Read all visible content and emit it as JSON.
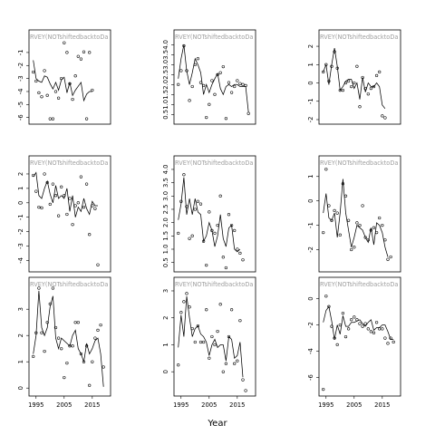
{
  "chart_data": {
    "type": "scatter",
    "xlabel": "Year",
    "panel_title": "RVEY(NOTshiftedbacktoDa",
    "xticks": [
      1995,
      2005,
      2015
    ],
    "xlim": [
      1992.5,
      2021.5
    ],
    "panels": [
      {
        "row": 0,
        "col": 0,
        "ylim": [
          -6.3,
          -0.1
        ],
        "yticks": [
          -6,
          -5,
          -4,
          -3,
          -2,
          -1
        ],
        "x": [
          1994,
          1995,
          1996,
          1997,
          1998,
          1999,
          2000,
          2001,
          2002,
          2003,
          2004,
          2005,
          2006,
          2007,
          2008,
          2009,
          2010,
          2011,
          2012,
          2013,
          2014,
          2015,
          2016,
          2017,
          2018,
          2019
        ],
        "y": [
          -2.5,
          -3.2,
          -4.1,
          -4.4,
          -2.4,
          -4.3,
          -6.1,
          -6.1,
          -4.0,
          -4.5,
          -3.0,
          -0.25,
          -1.0,
          -3.4,
          -4.6,
          -2.8,
          -1.3,
          -1.5,
          -0.95,
          -6.1,
          -1.0,
          -3.9,
          null,
          null,
          null,
          null
        ],
        "smooth": [
          -1.6,
          -3.0,
          -3.2,
          -3.3,
          -2.8,
          -2.9,
          -3.4,
          -3.8,
          -3.3,
          -3.9,
          -3.1,
          -2.9,
          -4.1,
          -3.3,
          -4.3,
          -3.9,
          -3.6,
          -3.3,
          -4.7,
          -4.2,
          -4.0,
          -4.0,
          null,
          null,
          null,
          null
        ]
      },
      {
        "row": 0,
        "col": 1,
        "ylim": [
          0.15,
          4.2
        ],
        "yticks": [
          0.5,
          1.0,
          1.5,
          2.0,
          2.5,
          3.0,
          3.5,
          4.0
        ],
        "x": [
          1994,
          1995,
          1996,
          1997,
          1998,
          1999,
          2000,
          2001,
          2002,
          2003,
          2004,
          2005,
          2006,
          2007,
          2008,
          2009,
          2010,
          2011,
          2012,
          2013,
          2014,
          2015,
          2016,
          2017,
          2018,
          2019
        ],
        "y": [
          2.0,
          2.7,
          3.95,
          2.7,
          1.2,
          1.9,
          3.0,
          3.3,
          2.1,
          1.95,
          0.35,
          1.0,
          2.2,
          1.5,
          2.5,
          2.6,
          2.9,
          0.3,
          2.1,
          1.6,
          1.9,
          2.2,
          2.05,
          2.0,
          1.95,
          0.55
        ],
        "smooth": [
          2.3,
          3.3,
          4.0,
          2.7,
          2.0,
          2.6,
          3.3,
          3.0,
          2.6,
          1.5,
          2.0,
          1.6,
          2.0,
          2.3,
          2.55,
          1.8,
          1.5,
          1.9,
          2.0,
          1.9,
          2.0,
          2.0,
          1.9,
          1.9,
          1.9,
          0.6
        ]
      },
      {
        "row": 0,
        "col": 2,
        "ylim": [
          -2.1,
          2.3
        ],
        "yticks": [
          -2,
          -1,
          0,
          1,
          2
        ],
        "x": [
          1994,
          1995,
          1996,
          1997,
          1998,
          1999,
          2000,
          2001,
          2002,
          2003,
          2004,
          2005,
          2006,
          2007,
          2008,
          2009,
          2010,
          2011,
          2012,
          2013,
          2014,
          2015,
          2016,
          2017,
          2018,
          2019
        ],
        "y": [
          0.6,
          1.0,
          0.1,
          0.9,
          1.7,
          0.8,
          -0.4,
          -0.4,
          0.0,
          0.1,
          -0.2,
          0.0,
          0.9,
          -1.3,
          0.3,
          -0.3,
          -0.6,
          -0.3,
          -0.2,
          0.4,
          0.6,
          -1.8,
          -1.9,
          null,
          null,
          null
        ],
        "smooth": [
          0.6,
          1.0,
          -0.1,
          1.0,
          1.9,
          0.9,
          -0.4,
          -0.2,
          0.1,
          0.2,
          0.2,
          -0.3,
          0.0,
          -0.9,
          0.3,
          -0.5,
          0.0,
          -0.2,
          -0.2,
          0.0,
          -0.2,
          -1.2,
          -1.4,
          null,
          null,
          null
        ]
      },
      {
        "row": 1,
        "col": 0,
        "ylim": [
          -4.6,
          2.5
        ],
        "yticks": [
          -4,
          -3,
          -2,
          -1,
          0,
          1,
          2
        ],
        "x": [
          1994,
          1995,
          1996,
          1997,
          1998,
          1999,
          2000,
          2001,
          2002,
          2003,
          2004,
          2005,
          2006,
          2007,
          2008,
          2009,
          2010,
          2011,
          2012,
          2013,
          2014,
          2015,
          2016,
          2017,
          2018,
          2019
        ],
        "y": [
          1.9,
          0.8,
          -0.3,
          -0.35,
          2.0,
          1.4,
          -0.1,
          1.3,
          0.5,
          -0.9,
          1.1,
          0.5,
          -0.8,
          0.3,
          -1.5,
          -0.2,
          0.0,
          1.8,
          -0.3,
          1.3,
          -2.2,
          -0.2,
          -0.4,
          -4.3,
          null,
          null
        ],
        "smooth": [
          1.8,
          2.1,
          0.5,
          0.3,
          1.0,
          1.5,
          0.6,
          0.0,
          1.2,
          0.3,
          0.5,
          0.3,
          1.0,
          -0.6,
          0.5,
          -1.0,
          -0.3,
          -0.6,
          0.3,
          -0.4,
          -0.8,
          0.1,
          -0.2,
          -0.2,
          null,
          null
        ]
      },
      {
        "row": 1,
        "col": 1,
        "ylim": [
          0.25,
          4.1
        ],
        "yticks": [
          0.5,
          1.0,
          1.5,
          2.0,
          2.5,
          3.0,
          3.5,
          4.0
        ],
        "x": [
          1994,
          1995,
          1996,
          1997,
          1998,
          1999,
          2000,
          2001,
          2002,
          2003,
          2004,
          2005,
          2006,
          2007,
          2008,
          2009,
          2010,
          2011,
          2012,
          2013,
          2014,
          2015,
          2016,
          2017,
          2018,
          2019
        ],
        "y": [
          1.6,
          2.8,
          3.8,
          2.6,
          1.4,
          1.5,
          2.5,
          2.8,
          2.7,
          1.3,
          0.4,
          2.4,
          1.7,
          1.6,
          1.9,
          3.0,
          0.7,
          0.3,
          2.3,
          1.9,
          1.7,
          1.0,
          0.85,
          0.6,
          null,
          null
        ],
        "smooth": [
          2.1,
          2.7,
          3.7,
          2.3,
          2.9,
          2.3,
          2.9,
          2.4,
          2.3,
          1.3,
          1.5,
          2.0,
          1.7,
          1.1,
          1.5,
          2.3,
          1.4,
          1.1,
          1.8,
          1.9,
          1.0,
          0.9,
          1.0,
          null,
          null,
          null
        ]
      },
      {
        "row": 1,
        "col": 2,
        "ylim": [
          -2.8,
          1.4
        ],
        "yticks": [
          -2,
          -1,
          0,
          1
        ],
        "x": [
          1994,
          1995,
          1996,
          1997,
          1998,
          1999,
          2000,
          2001,
          2002,
          2003,
          2004,
          2005,
          2006,
          2007,
          2008,
          2009,
          2010,
          2011,
          2012,
          2013,
          2014,
          2015,
          2016,
          2017,
          2018,
          2019
        ],
        "y": [
          -1.3,
          1.3,
          -0.2,
          -0.8,
          -0.4,
          -0.5,
          -1.4,
          0.7,
          0.2,
          -0.8,
          -2.0,
          -1.9,
          -0.9,
          -1.0,
          -0.2,
          -1.5,
          -1.6,
          -1.2,
          -1.1,
          -1.3,
          -0.7,
          -1.0,
          -1.6,
          -2.4,
          -2.3,
          null
        ],
        "smooth": [
          -0.5,
          0.3,
          -0.7,
          -0.8,
          -0.5,
          -1.5,
          -0.5,
          0.9,
          -0.5,
          -1.2,
          -1.9,
          -1.5,
          -1.0,
          -1.1,
          -1.2,
          -1.5,
          -1.7,
          -1.1,
          -1.8,
          -0.9,
          -1.0,
          -1.3,
          -1.9,
          -2.3,
          null,
          null
        ]
      },
      {
        "row": 2,
        "col": 0,
        "ylim": [
          -0.2,
          3.8
        ],
        "yticks": [
          0,
          1,
          2,
          3
        ],
        "x": [
          1994,
          1995,
          1996,
          1997,
          1998,
          1999,
          2000,
          2001,
          2002,
          2003,
          2004,
          2005,
          2006,
          2007,
          2008,
          2009,
          2010,
          2011,
          2012,
          2013,
          2014,
          2015,
          2016,
          2017,
          2018,
          2019
        ],
        "y": [
          1.2,
          2.1,
          3.8,
          2.1,
          1.4,
          2.5,
          3.2,
          3.8,
          2.3,
          1.9,
          1.5,
          0.4,
          0.95,
          1.6,
          1.6,
          2.5,
          2.5,
          1.3,
          1.0,
          1.6,
          0.1,
          1.0,
          1.9,
          2.2,
          2.4,
          0.8
        ],
        "smooth": [
          1.3,
          2.0,
          3.7,
          2.3,
          2.0,
          2.3,
          3.1,
          3.5,
          1.9,
          1.5,
          1.9,
          1.8,
          1.7,
          1.6,
          2.0,
          2.2,
          1.5,
          1.3,
          1.0,
          1.7,
          1.3,
          1.5,
          1.8,
          1.9,
          1.3,
          0.05
        ]
      },
      {
        "row": 2,
        "col": 1,
        "ylim": [
          -0.8,
          3.1
        ],
        "yticks": [
          0,
          1,
          2,
          3
        ],
        "x": [
          1994,
          1995,
          1996,
          1997,
          1998,
          1999,
          2000,
          2001,
          2002,
          2003,
          2004,
          2005,
          2006,
          2007,
          2008,
          2009,
          2010,
          2011,
          2012,
          2013,
          2014,
          2015,
          2016,
          2017,
          2018,
          2019
        ],
        "y": [
          0.25,
          2.2,
          2.6,
          2.9,
          2.4,
          1.6,
          1.1,
          1.7,
          1.1,
          1.1,
          2.3,
          0.5,
          1.3,
          1.0,
          1.5,
          2.5,
          0.0,
          0.3,
          1.3,
          2.3,
          0.3,
          0.4,
          1.9,
          -0.3,
          -0.7,
          null
        ],
        "smooth": [
          0.9,
          2.1,
          1.3,
          2.8,
          2.0,
          1.3,
          1.6,
          1.7,
          1.4,
          1.3,
          1.1,
          0.6,
          1.0,
          1.2,
          0.9,
          1.0,
          1.0,
          0.4,
          1.3,
          1.2,
          0.5,
          0.6,
          1.1,
          -0.2,
          null,
          null
        ]
      },
      {
        "row": 2,
        "col": 2,
        "ylim": [
          -7.2,
          0.8
        ],
        "yticks": [
          -6,
          -4,
          -2,
          0
        ],
        "x": [
          1994,
          1995,
          1996,
          1997,
          1998,
          1999,
          2000,
          2001,
          2002,
          2003,
          2004,
          2005,
          2006,
          2007,
          2008,
          2009,
          2010,
          2011,
          2012,
          2013,
          2014,
          2015,
          2016,
          2017,
          2018,
          2019
        ],
        "y": [
          -6.9,
          0.2,
          -0.6,
          -2.1,
          -3.0,
          -3.5,
          -2.0,
          -1.1,
          -2.9,
          -2.3,
          -1.6,
          -1.4,
          -1.6,
          -1.9,
          -2.1,
          -1.9,
          -2.3,
          -2.5,
          -2.6,
          -1.8,
          -2.3,
          -2.3,
          -3.0,
          -3.4,
          -3.0,
          -3.3
        ],
        "smooth": [
          -1.8,
          -0.9,
          -0.6,
          -1.7,
          -3.1,
          -2.0,
          -2.7,
          -1.3,
          -2.1,
          -2.1,
          -1.8,
          -1.8,
          -1.7,
          -1.6,
          -1.9,
          -2.1,
          -1.8,
          -1.6,
          -2.4,
          -2.2,
          -2.2,
          -2.0,
          -2.0,
          -2.5,
          -3.1,
          -3.1
        ]
      }
    ]
  }
}
